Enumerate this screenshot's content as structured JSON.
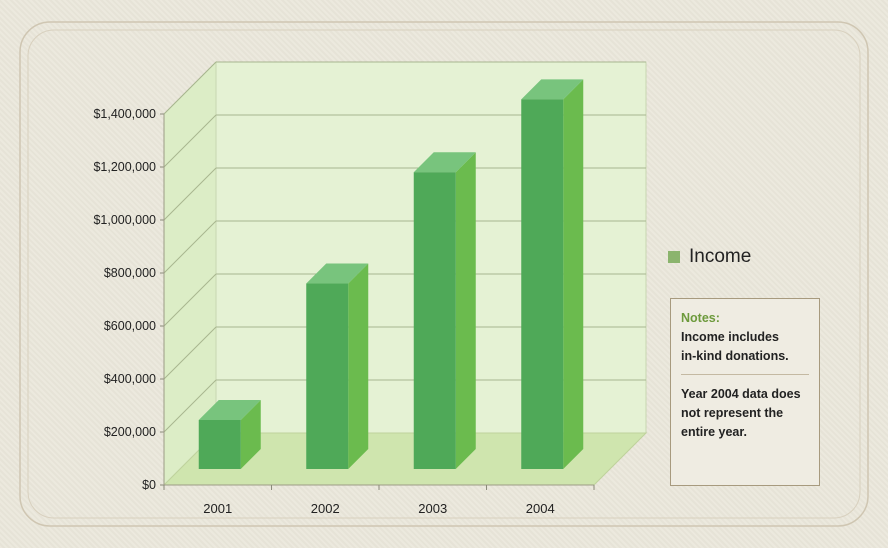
{
  "chart_data": {
    "type": "bar",
    "categories": [
      "2001",
      "2002",
      "2003",
      "2004"
    ],
    "series": [
      {
        "name": "Income",
        "values": [
          200000,
          715000,
          1135000,
          1410000
        ]
      }
    ],
    "yticks": [
      "$0",
      "$200,000",
      "$400,000",
      "$600,000",
      "$800,000",
      "$1,000,000",
      "$1,200,000",
      "$1,400,000"
    ],
    "ylim": [
      0,
      1400000
    ],
    "grid": true,
    "legend": "right",
    "colors": {
      "bar_front": "#4fa958",
      "bar_side": "#6bbb4e",
      "bar_top": "#78c47d",
      "legend": "#8bb46d"
    }
  },
  "notes": {
    "title": "Notes:",
    "line1": "Income includes",
    "line2": "in-kind donations.",
    "line3": "Year 2004 data does",
    "line4": "not represent the",
    "line5": "entire year."
  }
}
